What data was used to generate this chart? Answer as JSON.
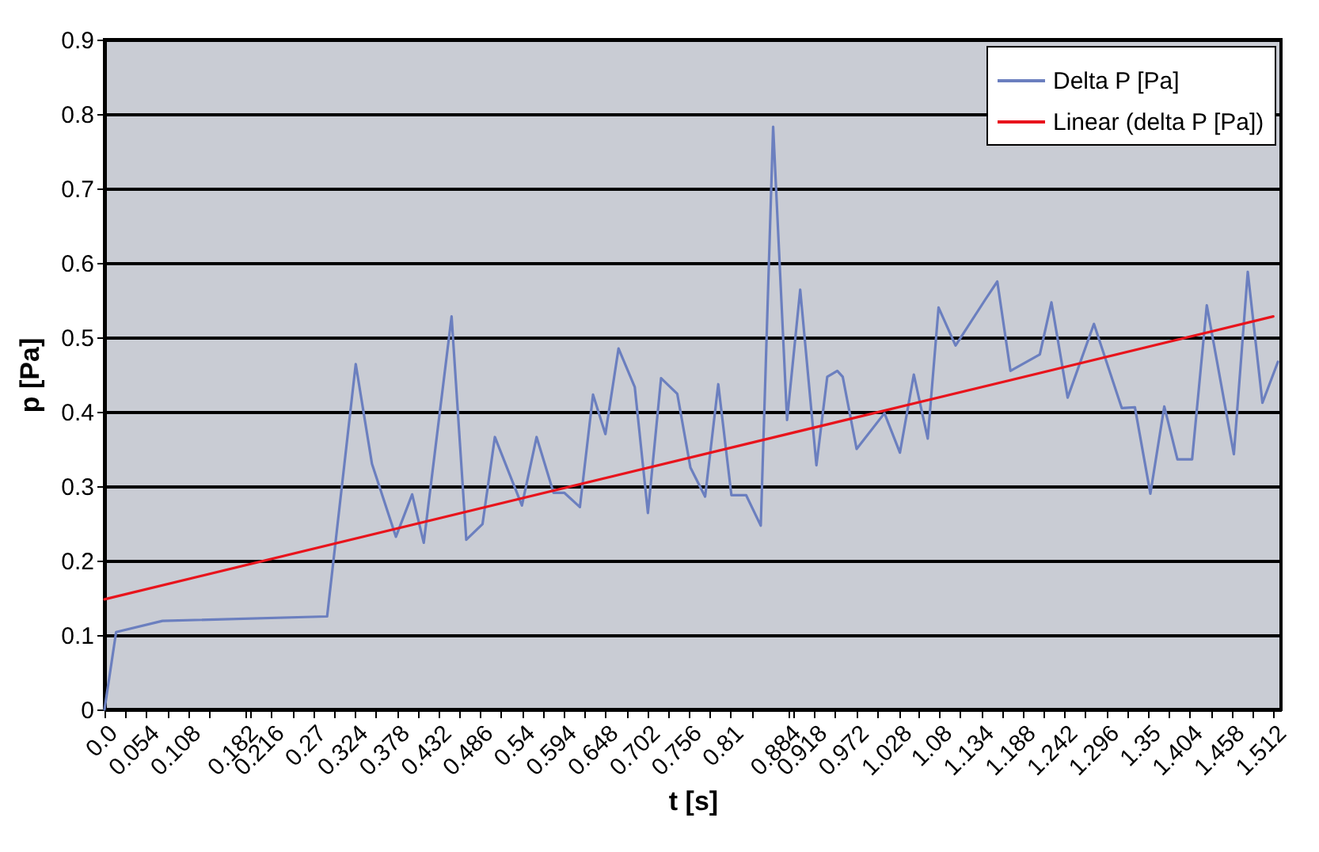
{
  "chart_data": {
    "type": "line",
    "xlabel": "t [s]",
    "ylabel": "p [Pa]",
    "xlim": [
      0,
      1.522
    ],
    "ylim": [
      0,
      0.9
    ],
    "xticks": [
      {
        "value": 0,
        "label": "0.0"
      },
      {
        "value": 0.027,
        "label": null
      },
      0.054,
      {
        "value": 0.081,
        "label": null
      },
      0.108,
      {
        "value": 0.135,
        "label": null
      },
      0.182,
      {
        "value": 0.189,
        "label": null
      },
      0.216,
      {
        "value": 0.243,
        "label": null
      },
      0.27,
      {
        "value": 0.297,
        "label": null
      },
      0.324,
      {
        "value": 0.351,
        "label": null
      },
      0.378,
      {
        "value": 0.405,
        "label": null
      },
      0.432,
      {
        "value": 0.459,
        "label": null
      },
      0.486,
      {
        "value": 0.513,
        "label": null
      },
      0.54,
      {
        "value": 0.567,
        "label": null
      },
      0.594,
      {
        "value": 0.621,
        "label": null
      },
      0.648,
      {
        "value": 0.675,
        "label": null
      },
      0.702,
      {
        "value": 0.729,
        "label": null
      },
      0.756,
      {
        "value": 0.783,
        "label": null
      },
      0.81,
      {
        "value": 0.837,
        "label": null
      },
      0.884,
      {
        "value": 0.891,
        "label": null
      },
      0.918,
      {
        "value": 0.945,
        "label": null
      },
      0.972,
      {
        "value": 0.999,
        "label": null
      },
      1.028,
      {
        "value": 1.053,
        "label": null
      },
      1.08,
      {
        "value": 1.107,
        "label": null
      },
      1.134,
      {
        "value": 1.161,
        "label": null
      },
      1.188,
      {
        "value": 1.215,
        "label": null
      },
      1.242,
      {
        "value": 1.269,
        "label": null
      },
      1.296,
      {
        "value": 1.323,
        "label": null
      },
      1.35,
      {
        "value": 1.377,
        "label": null
      },
      1.404,
      {
        "value": 1.431,
        "label": null
      },
      1.458,
      {
        "value": 1.485,
        "label": null
      },
      1.512
    ],
    "yticks": [
      0,
      0.1,
      0.2,
      0.3,
      0.4,
      0.5,
      0.6,
      0.7,
      0.8,
      0.9
    ],
    "grid": "y",
    "legend": "top right",
    "marker": "none",
    "line_style": "solid",
    "series": [
      {
        "name": "Delta P [Pa]",
        "color": "#6b7fbf",
        "x": [
          0,
          0.015,
          0.075,
          0.288,
          0.325,
          0.346,
          0.377,
          0.398,
          0.413,
          0.449,
          0.468,
          0.489,
          0.505,
          0.54,
          0.559,
          0.581,
          0.595,
          0.615,
          0.632,
          0.648,
          0.665,
          0.686,
          0.703,
          0.72,
          0.741,
          0.758,
          0.777,
          0.794,
          0.811,
          0.83,
          0.849,
          0.865,
          0.883,
          0.9,
          0.921,
          0.935,
          0.948,
          0.955,
          0.973,
          1.009,
          1.029,
          1.047,
          1.065,
          1.079,
          1.101,
          1.139,
          1.155,
          1.172,
          1.21,
          1.225,
          1.246,
          1.28,
          1.316,
          1.333,
          1.353,
          1.371,
          1.388,
          1.407,
          1.426,
          1.461,
          1.479,
          1.498,
          1.518
        ],
        "values": [
          0,
          0.104,
          0.119,
          0.125,
          0.464,
          0.33,
          0.232,
          0.289,
          0.224,
          0.528,
          0.228,
          0.249,
          0.366,
          0.274,
          0.366,
          0.291,
          0.291,
          0.272,
          0.423,
          0.37,
          0.485,
          0.433,
          0.264,
          0.445,
          0.424,
          0.325,
          0.286,
          0.437,
          0.288,
          0.288,
          0.247,
          0.783,
          0.389,
          0.564,
          0.328,
          0.447,
          0.455,
          0.447,
          0.35,
          0.398,
          0.345,
          0.45,
          0.364,
          0.54,
          0.489,
          0.55,
          0.575,
          0.455,
          0.477,
          0.547,
          0.419,
          0.518,
          0.405,
          0.406,
          0.29,
          0.407,
          0.336,
          0.336,
          0.543,
          0.343,
          0.588,
          0.412,
          0.467
        ]
      },
      {
        "name": "Linear (delta P [Pa])",
        "color": "#e8141c",
        "x": [
          0,
          1.512
        ],
        "values": [
          0.148,
          0.528
        ]
      }
    ]
  }
}
